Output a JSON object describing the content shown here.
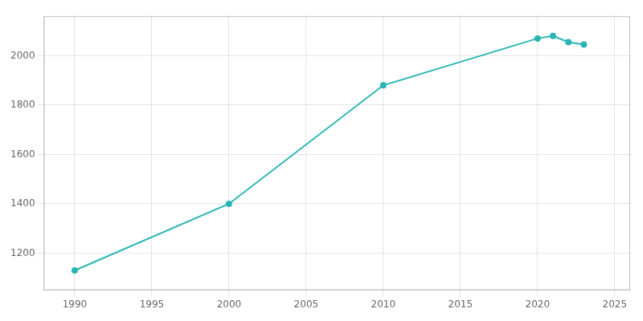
{
  "chart_data": {
    "type": "line",
    "x": [
      1990,
      2000,
      2010,
      2020,
      2021,
      2022,
      2023
    ],
    "values": [
      1130,
      1400,
      1880,
      2070,
      2080,
      2055,
      2045
    ],
    "color": "#2ab5b5",
    "marker": "circle",
    "xlim": [
      1988,
      2026
    ],
    "ylim": [
      1050,
      2160
    ],
    "xticks": [
      1990,
      1995,
      2000,
      2005,
      2010,
      2015,
      2020,
      2025
    ],
    "yticks": [
      1200,
      1400,
      1600,
      1800,
      2000
    ],
    "grid": true
  }
}
